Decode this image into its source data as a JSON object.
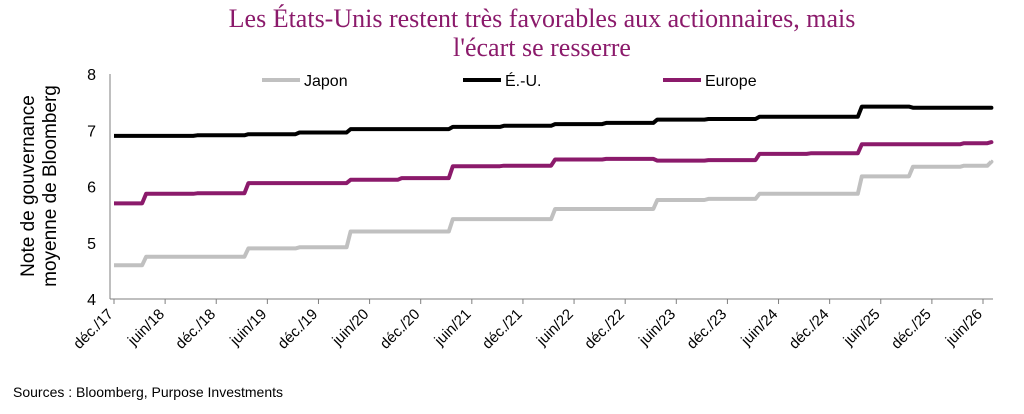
{
  "title_lines": [
    "Les États-Unis restent très favorables aux actionnaires, mais",
    "l'écart se resserre"
  ],
  "ylabel_lines": [
    "Note de gouvernance",
    "moyenne de Bloomberg"
  ],
  "source": "Sources : Bloomberg, Purpose Investments",
  "chart_data": {
    "type": "line",
    "title": "Les États-Unis restent très favorables aux actionnaires, mais l'écart se resserre",
    "ylabel": "Note de gouvernance moyenne de Bloomberg",
    "xlabel": "",
    "ylim": [
      4,
      8
    ],
    "yticks": [
      4,
      5,
      6,
      7,
      8
    ],
    "x_tick_labels": [
      "déc./17",
      "juin/18",
      "déc./18",
      "juin/19",
      "déc./19",
      "juin/20",
      "déc./20",
      "juin/21",
      "déc./21",
      "juin/22",
      "déc./22",
      "juin/23",
      "déc./23",
      "juin/24",
      "déc./24",
      "juin/25",
      "déc./25",
      "juin/26"
    ],
    "x": [
      "déc./17",
      "juin/18",
      "déc./18",
      "juin/19",
      "déc./19",
      "juin/20",
      "déc./20",
      "juin/21",
      "déc./21",
      "juin/22",
      "déc./22",
      "juin/23",
      "déc./23",
      "juin/24",
      "déc./24",
      "juin/25",
      "déc./25",
      "juin/26",
      "juil./26"
    ],
    "grid": false,
    "legend_position": "top",
    "series": [
      {
        "name": "Japon",
        "color": "#c0c0c0",
        "values": [
          4.6,
          4.75,
          4.75,
          4.9,
          4.92,
          5.2,
          5.2,
          5.42,
          5.42,
          5.6,
          5.6,
          5.76,
          5.78,
          5.87,
          5.87,
          6.18,
          6.35,
          6.37,
          6.44
        ]
      },
      {
        "name": "É.-U.",
        "color": "#000000",
        "values": [
          6.9,
          6.9,
          6.91,
          6.93,
          6.96,
          7.02,
          7.02,
          7.06,
          7.08,
          7.11,
          7.13,
          7.19,
          7.2,
          7.24,
          7.24,
          7.42,
          7.4,
          7.4,
          7.4
        ]
      },
      {
        "name": "Europe",
        "color": "#8b1a6b",
        "values": [
          5.7,
          5.87,
          5.88,
          6.06,
          6.06,
          6.12,
          6.15,
          6.36,
          6.37,
          6.48,
          6.49,
          6.46,
          6.47,
          6.58,
          6.59,
          6.75,
          6.75,
          6.77,
          6.79
        ]
      }
    ]
  }
}
